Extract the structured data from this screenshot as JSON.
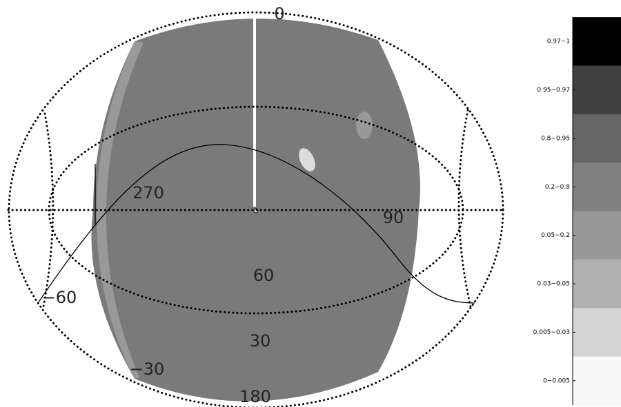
{
  "map": {
    "labels": [
      "0",
      "270",
      "90",
      "60",
      "30",
      "−60",
      "−30",
      "180"
    ]
  },
  "legend": {
    "items": [
      {
        "label": "0.97−1",
        "color": "#000000"
      },
      {
        "label": "0.95−0.97",
        "color": "#404040"
      },
      {
        "label": "0.8−0.95",
        "color": "#666666"
      },
      {
        "label": "0.2−0.8",
        "color": "#808080"
      },
      {
        "label": "0.05−0.2",
        "color": "#999999"
      },
      {
        "label": "0.03−0.05",
        "color": "#b0b0b0"
      },
      {
        "label": "0.005−0.03",
        "color": "#d4d4d4"
      },
      {
        "label": "0−0.005",
        "color": "#f8f8f8"
      }
    ]
  }
}
